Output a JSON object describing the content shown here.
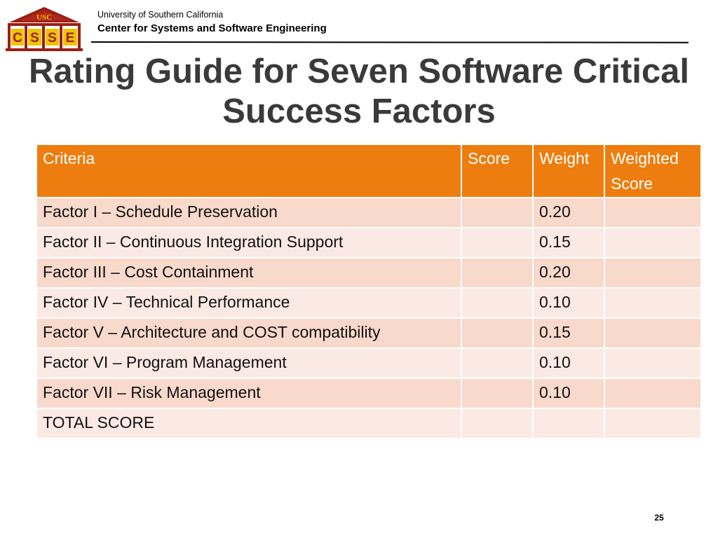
{
  "header": {
    "logo": {
      "banner_text": "USC",
      "letters": [
        "C",
        "S",
        "S",
        "E"
      ]
    },
    "organization": "University of Southern California",
    "center": "Center for Systems and Software Engineering"
  },
  "title": "Rating Guide for Seven Software Critical Success Factors",
  "table": {
    "columns": [
      "Criteria",
      "Score",
      "Weight",
      "Weighted Score"
    ],
    "rows": [
      {
        "criteria": "Factor I – Schedule Preservation",
        "score": "",
        "weight": "0.20",
        "weighted_score": ""
      },
      {
        "criteria": "Factor II – Continuous Integration Support",
        "score": "",
        "weight": "0.15",
        "weighted_score": ""
      },
      {
        "criteria": "Factor III – Cost Containment",
        "score": "",
        "weight": "0.20",
        "weighted_score": ""
      },
      {
        "criteria": "Factor IV – Technical Performance",
        "score": "",
        "weight": "0.10",
        "weighted_score": ""
      },
      {
        "criteria": "Factor V – Architecture and COST compatibility",
        "score": "",
        "weight": "0.15",
        "weighted_score": ""
      },
      {
        "criteria": "Factor VI – Program Management",
        "score": "",
        "weight": "0.10",
        "weighted_score": ""
      },
      {
        "criteria": "Factor VII – Risk Management",
        "score": "",
        "weight": "0.10",
        "weighted_score": ""
      },
      {
        "criteria": "TOTAL SCORE",
        "score": "",
        "weight": "",
        "weighted_score": ""
      }
    ]
  },
  "page_number": "25",
  "colors": {
    "header_fill": "#ed7d0e",
    "row_odd": "#f8d9cc",
    "row_even": "#fbe9e4",
    "logo_maroon": "#8c1515",
    "logo_gold": "#f2c200"
  }
}
